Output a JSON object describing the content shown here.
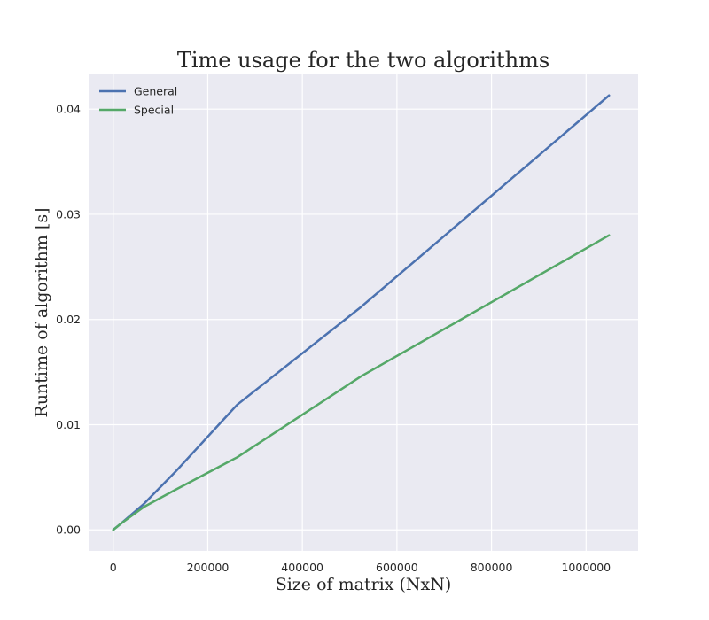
{
  "chart_data": {
    "type": "line",
    "title": "Time usage for the two algorithms",
    "xlabel": "Size of matrix (NxN)",
    "ylabel": "Runtime of algorithm [s]",
    "xlim": [
      -52000,
      1110000
    ],
    "ylim": [
      -0.002,
      0.0433
    ],
    "xticks": [
      0,
      200000,
      400000,
      600000,
      800000,
      1000000
    ],
    "xtick_labels": [
      "0",
      "200000",
      "400000",
      "600000",
      "800000",
      "1000000"
    ],
    "yticks": [
      0.0,
      0.01,
      0.02,
      0.03,
      0.04
    ],
    "ytick_labels": [
      "0.00",
      "0.01",
      "0.02",
      "0.03",
      "0.04"
    ],
    "grid": true,
    "legend_position": "top-left",
    "x": [
      100,
      1024,
      4096,
      16384,
      65536,
      131072,
      262144,
      524288,
      1048576
    ],
    "series": [
      {
        "name": "General",
        "color": "#4c72b0",
        "values": [
          0.0,
          4e-05,
          0.00016,
          0.0006,
          0.0025,
          0.0055,
          0.0119,
          0.0212,
          0.0413
        ]
      },
      {
        "name": "Special",
        "color": "#55a868",
        "values": [
          0.0,
          4e-05,
          0.00015,
          0.0006,
          0.0022,
          0.0038,
          0.0069,
          0.0146,
          0.028
        ]
      }
    ]
  },
  "colors": {
    "plot_background": "#eaeaf2",
    "grid": "#ffffff",
    "text": "#262626"
  }
}
